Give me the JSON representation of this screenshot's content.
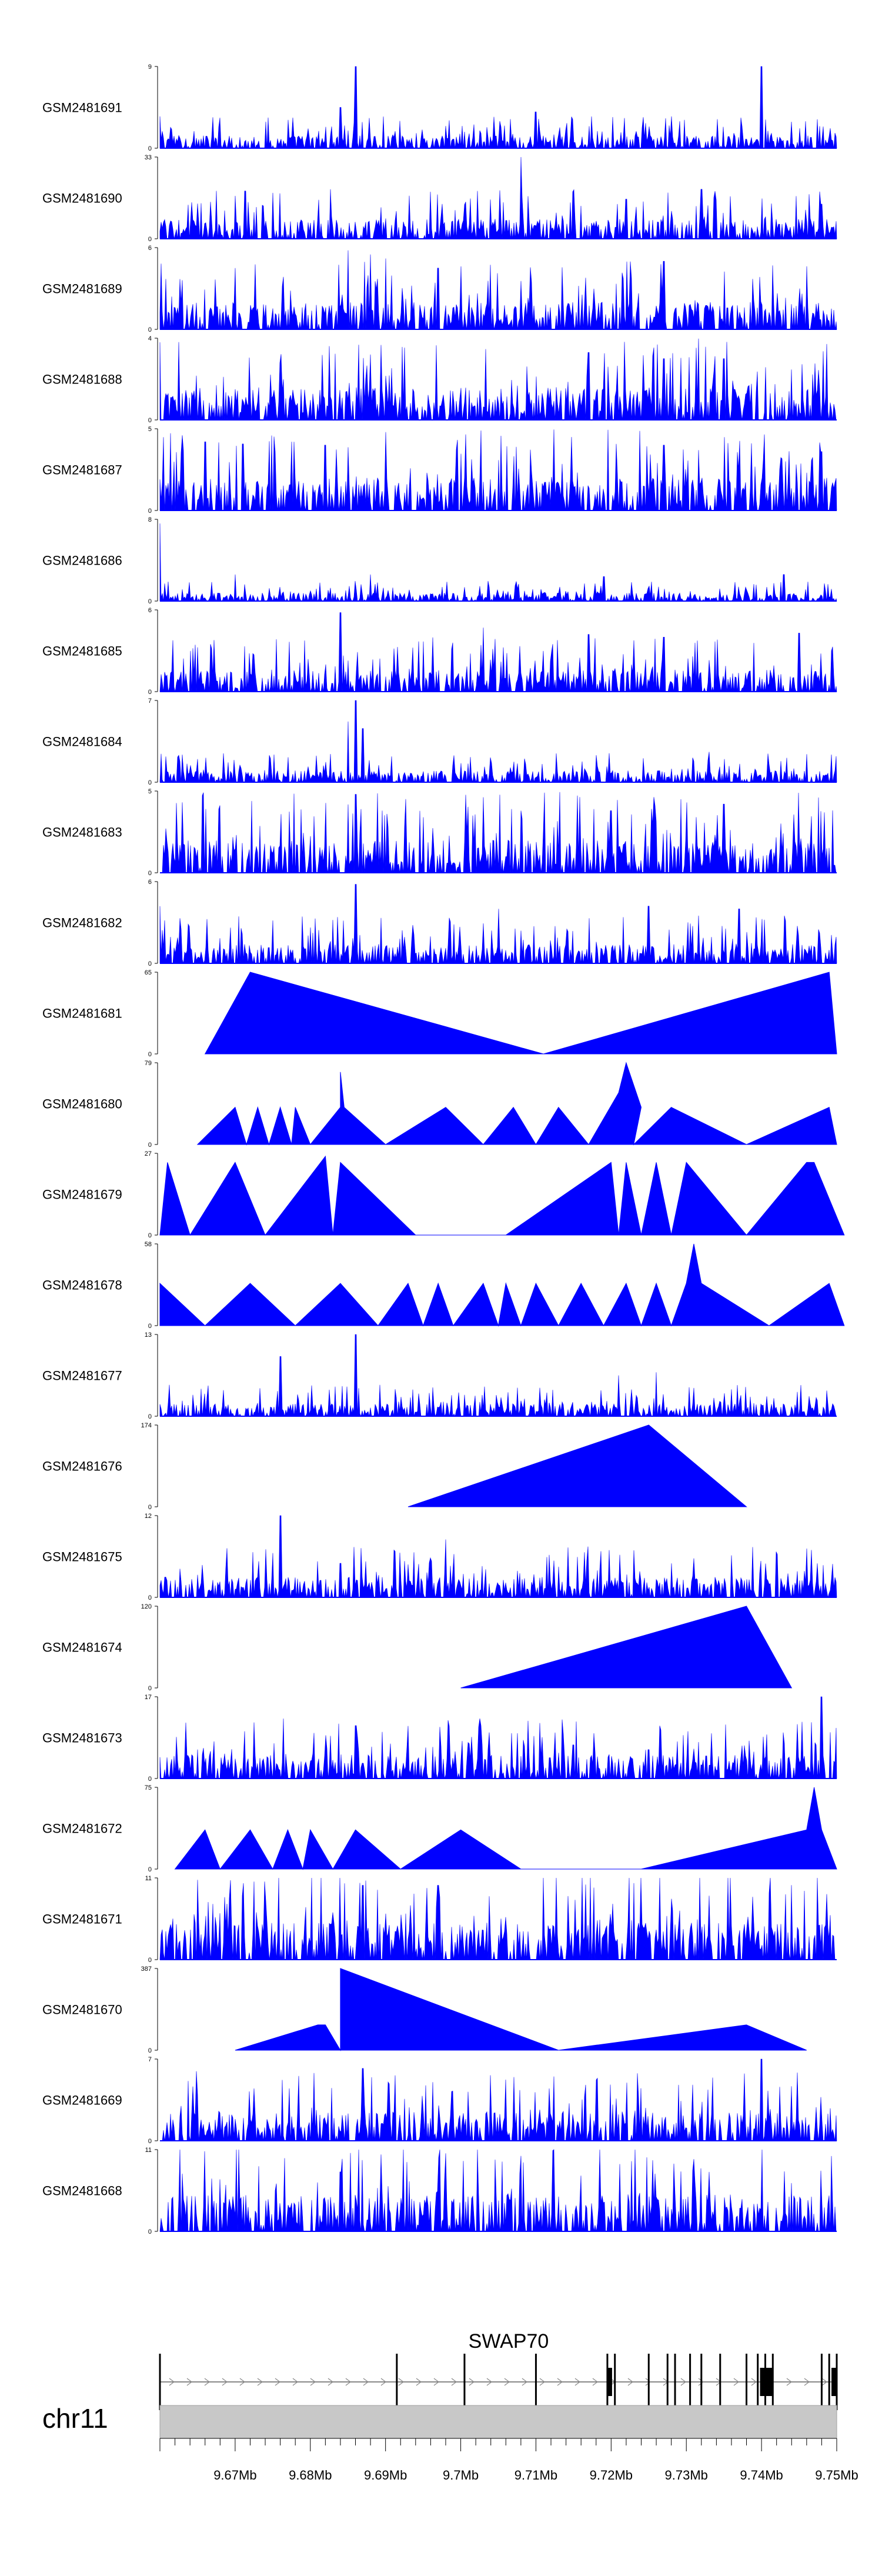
{
  "chart_data": {
    "type": "area",
    "genome": {
      "chromosome": "chr11",
      "x_range_mb": [
        9.66,
        9.75
      ],
      "x_ticks_mb": [
        9.67,
        9.68,
        9.69,
        9.7,
        9.71,
        9.72,
        9.73,
        9.74,
        9.75
      ],
      "x_tick_labels": [
        "9.67Mb",
        "9.68Mb",
        "9.69Mb",
        "9.7Mb",
        "9.71Mb",
        "9.72Mb",
        "9.73Mb",
        "9.74Mb",
        "9.75Mb"
      ]
    },
    "colors": {
      "signal": "#0000ff",
      "axis": "#000000",
      "ideogram": "#c8c8c8",
      "gene": "#000000"
    },
    "tracks": [
      {
        "label": "GSM2481691",
        "ymax": 9,
        "ymax_label": "9",
        "ymin_label": "0",
        "style": "dense",
        "baseline": 0.7,
        "peaks": [
          [
            9.686,
            9.0
          ],
          [
            9.74,
            9.0
          ],
          [
            9.684,
            4.5
          ],
          [
            9.71,
            4.0
          ],
          [
            9.66,
            3.5
          ],
          [
            9.728,
            3.5
          ]
        ]
      },
      {
        "label": "GSM2481690",
        "ymax": 33,
        "ymax_label": "33",
        "ymin_label": "0",
        "style": "dense",
        "baseline": 4.0,
        "peaks": [
          [
            9.708,
            33.0
          ],
          [
            9.696,
            19.0
          ],
          [
            9.715,
            19.0
          ],
          [
            9.732,
            20.0
          ],
          [
            9.722,
            16.0
          ],
          [
            9.748,
            14.0
          ]
        ]
      },
      {
        "label": "GSM2481689",
        "ymax": 6,
        "ymax_label": "6",
        "ymin_label": "0",
        "style": "dense",
        "baseline": 1.0,
        "peaks": [
          [
            9.685,
            5.8
          ],
          [
            9.688,
            5.5
          ],
          [
            9.69,
            5.2
          ],
          [
            9.697,
            4.5
          ],
          [
            9.727,
            5.0
          ],
          [
            9.67,
            4.5
          ]
        ]
      },
      {
        "label": "GSM2481688",
        "ymax": 4,
        "ymax_label": "4",
        "ymin_label": "0",
        "style": "dense",
        "baseline": 0.8,
        "peaks": [
          [
            9.66,
            3.8
          ],
          [
            9.688,
            3.2
          ],
          [
            9.717,
            3.3
          ],
          [
            9.727,
            3.0
          ],
          [
            9.735,
            3.0
          ],
          [
            9.676,
            2.8
          ]
        ]
      },
      {
        "label": "GSM2481687",
        "ymax": 5,
        "ymax_label": "5",
        "ymin_label": "0",
        "style": "dense",
        "baseline": 1.0,
        "peaks": [
          [
            9.663,
            4.6
          ],
          [
            9.666,
            4.2
          ],
          [
            9.69,
            4.8
          ],
          [
            9.682,
            4.0
          ],
          [
            9.727,
            4.0
          ],
          [
            9.748,
            3.6
          ]
        ]
      },
      {
        "label": "GSM2481686",
        "ymax": 8,
        "ymax_label": "8",
        "ymin_label": "0",
        "style": "dense",
        "baseline": 0.4,
        "peaks": [
          [
            9.66,
            7.6
          ],
          [
            9.67,
            2.6
          ],
          [
            9.688,
            2.6
          ],
          [
            9.719,
            2.4
          ],
          [
            9.743,
            2.6
          ]
        ]
      },
      {
        "label": "GSM2481685",
        "ymax": 6,
        "ymax_label": "6",
        "ymin_label": "0",
        "style": "dense",
        "baseline": 0.8,
        "peaks": [
          [
            9.684,
            5.8
          ],
          [
            9.703,
            4.7
          ],
          [
            9.717,
            4.2
          ],
          [
            9.727,
            4.0
          ],
          [
            9.745,
            4.3
          ]
        ]
      },
      {
        "label": "GSM2481684",
        "ymax": 7,
        "ymax_label": "7",
        "ymin_label": "0",
        "style": "dense",
        "baseline": 0.5,
        "peaks": [
          [
            9.686,
            7.0
          ],
          [
            9.685,
            5.2
          ],
          [
            9.687,
            4.6
          ],
          [
            9.733,
            2.6
          ],
          [
            9.746,
            2.4
          ]
        ]
      },
      {
        "label": "GSM2481683",
        "ymax": 5,
        "ymax_label": "5",
        "ymin_label": "0",
        "style": "dense",
        "baseline": 1.0,
        "peaks": [
          [
            9.686,
            4.8
          ],
          [
            9.708,
            3.8
          ],
          [
            9.72,
            3.8
          ],
          [
            9.735,
            4.2
          ],
          [
            9.695,
            3.4
          ]
        ]
      },
      {
        "label": "GSM2481682",
        "ymax": 6,
        "ymax_label": "6",
        "ymin_label": "0",
        "style": "dense",
        "baseline": 0.7,
        "peaks": [
          [
            9.686,
            5.8
          ],
          [
            9.66,
            4.2
          ],
          [
            9.705,
            4.0
          ],
          [
            9.725,
            4.2
          ],
          [
            9.737,
            4.0
          ]
        ]
      },
      {
        "label": "GSM2481681",
        "ymax": 65,
        "ymax_label": "65",
        "ymin_label": "0",
        "style": "sparse",
        "points": [
          [
            9.666,
            0
          ],
          [
            9.672,
            65
          ],
          [
            9.711,
            0
          ],
          [
            9.749,
            65
          ],
          [
            9.75,
            0
          ]
        ]
      },
      {
        "label": "GSM2481680",
        "ymax": 79,
        "ymax_label": "79",
        "ymin_label": "0",
        "style": "sparse",
        "points": [
          [
            9.665,
            0
          ],
          [
            9.67,
            36
          ],
          [
            9.6715,
            0
          ],
          [
            9.673,
            36
          ],
          [
            9.6745,
            0
          ],
          [
            9.676,
            36
          ],
          [
            9.6775,
            0
          ],
          [
            9.678,
            36
          ],
          [
            9.68,
            0
          ],
          [
            9.684,
            36
          ],
          [
            9.684,
            70
          ],
          [
            9.6845,
            36
          ],
          [
            9.69,
            0
          ],
          [
            9.698,
            36
          ],
          [
            9.703,
            0
          ],
          [
            9.707,
            36
          ],
          [
            9.71,
            0
          ],
          [
            9.713,
            36
          ],
          [
            9.717,
            0
          ],
          [
            9.721,
            50
          ],
          [
            9.722,
            79
          ],
          [
            9.724,
            36
          ],
          [
            9.723,
            0
          ],
          [
            9.728,
            36
          ],
          [
            9.738,
            0
          ],
          [
            9.749,
            36
          ],
          [
            9.75,
            0
          ]
        ]
      },
      {
        "label": "GSM2481679",
        "ymax": 27,
        "ymax_label": "27",
        "ymin_label": "0",
        "style": "sparse",
        "points": [
          [
            9.66,
            0
          ],
          [
            9.661,
            24
          ],
          [
            9.664,
            0
          ],
          [
            9.67,
            24
          ],
          [
            9.674,
            0
          ],
          [
            9.682,
            26
          ],
          [
            9.683,
            0
          ],
          [
            9.684,
            24
          ],
          [
            9.694,
            0
          ],
          [
            9.706,
            0
          ],
          [
            9.72,
            24
          ],
          [
            9.721,
            0
          ],
          [
            9.722,
            24
          ],
          [
            9.724,
            0
          ],
          [
            9.726,
            24
          ],
          [
            9.728,
            0
          ],
          [
            9.73,
            24
          ],
          [
            9.738,
            0
          ],
          [
            9.746,
            24
          ],
          [
            9.747,
            24
          ],
          [
            9.751,
            0
          ]
        ]
      },
      {
        "label": "GSM2481678",
        "ymax": 58,
        "ymax_label": "58",
        "ymin_label": "0",
        "style": "sparse",
        "points": [
          [
            9.66,
            0
          ],
          [
            9.66,
            30
          ],
          [
            9.666,
            0
          ],
          [
            9.672,
            30
          ],
          [
            9.678,
            0
          ],
          [
            9.684,
            30
          ],
          [
            9.689,
            0
          ],
          [
            9.693,
            30
          ],
          [
            9.695,
            0
          ],
          [
            9.697,
            30
          ],
          [
            9.699,
            0
          ],
          [
            9.703,
            30
          ],
          [
            9.705,
            0
          ],
          [
            9.706,
            30
          ],
          [
            9.708,
            0
          ],
          [
            9.71,
            30
          ],
          [
            9.713,
            0
          ],
          [
            9.716,
            30
          ],
          [
            9.719,
            0
          ],
          [
            9.722,
            30
          ],
          [
            9.724,
            0
          ],
          [
            9.726,
            30
          ],
          [
            9.728,
            0
          ],
          [
            9.73,
            30
          ],
          [
            9.731,
            58
          ],
          [
            9.732,
            30
          ],
          [
            9.741,
            0
          ],
          [
            9.749,
            30
          ],
          [
            9.751,
            0
          ]
        ]
      },
      {
        "label": "GSM2481677",
        "ymax": 13,
        "ymax_label": "13",
        "ymin_label": "0",
        "style": "dense",
        "baseline": 1.0,
        "peaks": [
          [
            9.686,
            13.0
          ],
          [
            9.676,
            9.5
          ],
          [
            9.721,
            6.5
          ],
          [
            9.726,
            7.0
          ],
          [
            9.731,
            4.5
          ]
        ]
      },
      {
        "label": "GSM2481676",
        "ymax": 174,
        "ymax_label": "174",
        "ymin_label": "0",
        "style": "sparse",
        "points": [
          [
            9.693,
            0
          ],
          [
            9.725,
            174
          ],
          [
            9.738,
            0
          ]
        ]
      },
      {
        "label": "GSM2481675",
        "ymax": 12,
        "ymax_label": "12",
        "ymin_label": "0",
        "style": "dense",
        "baseline": 1.5,
        "peaks": [
          [
            9.676,
            12.0
          ],
          [
            9.698,
            8.5
          ],
          [
            9.684,
            5.0
          ],
          [
            9.728,
            5.0
          ],
          [
            9.713,
            4.5
          ]
        ]
      },
      {
        "label": "GSM2481674",
        "ymax": 120,
        "ymax_label": "120",
        "ymin_label": "0",
        "style": "sparse",
        "points": [
          [
            9.7,
            0
          ],
          [
            9.738,
            120
          ],
          [
            9.744,
            0
          ]
        ]
      },
      {
        "label": "GSM2481673",
        "ymax": 17,
        "ymax_label": "17",
        "ymin_label": "0",
        "style": "dense",
        "baseline": 2.5,
        "peaks": [
          [
            9.748,
            17.0
          ],
          [
            9.686,
            11.0
          ],
          [
            9.715,
            7.0
          ],
          [
            9.701,
            7.5
          ],
          [
            9.725,
            6.0
          ]
        ]
      },
      {
        "label": "GSM2481672",
        "ymax": 75,
        "ymax_label": "75",
        "ymin_label": "0",
        "style": "sparse",
        "points": [
          [
            9.662,
            0
          ],
          [
            9.666,
            36
          ],
          [
            9.668,
            0
          ],
          [
            9.672,
            36
          ],
          [
            9.675,
            0
          ],
          [
            9.677,
            36
          ],
          [
            9.679,
            0
          ],
          [
            9.68,
            36
          ],
          [
            9.683,
            0
          ],
          [
            9.686,
            36
          ],
          [
            9.692,
            0
          ],
          [
            9.7,
            36
          ],
          [
            9.708,
            0
          ],
          [
            9.715,
            0
          ],
          [
            9.724,
            0
          ],
          [
            9.746,
            36
          ],
          [
            9.747,
            75
          ],
          [
            9.748,
            36
          ],
          [
            9.75,
            0
          ]
        ]
      },
      {
        "label": "GSM2481671",
        "ymax": 11,
        "ymax_label": "11",
        "ymin_label": "0",
        "style": "dense",
        "baseline": 2.5,
        "peaks": [
          [
            9.724,
            11.0
          ],
          [
            9.697,
            10.0
          ],
          [
            9.687,
            10.0
          ],
          [
            9.741,
            9.0
          ],
          [
            9.674,
            8.0
          ],
          [
            9.667,
            7.5
          ]
        ]
      },
      {
        "label": "GSM2481670",
        "ymax": 387,
        "ymax_label": "387",
        "ymin_label": "0",
        "style": "sparse",
        "points": [
          [
            9.67,
            0
          ],
          [
            9.681,
            120
          ],
          [
            9.682,
            120
          ],
          [
            9.684,
            0
          ],
          [
            9.684,
            387
          ],
          [
            9.713,
            0
          ],
          [
            9.738,
            120
          ],
          [
            9.746,
            0
          ]
        ]
      },
      {
        "label": "GSM2481669",
        "ymax": 7,
        "ymax_label": "7",
        "ymin_label": "0",
        "style": "dense",
        "baseline": 1.2,
        "peaks": [
          [
            9.74,
            7.0
          ],
          [
            9.687,
            6.2
          ],
          [
            9.665,
            4.0
          ],
          [
            9.724,
            4.5
          ],
          [
            9.701,
            4.2
          ]
        ]
      },
      {
        "label": "GSM2481668",
        "ymax": 11,
        "ymax_label": "11",
        "ymin_label": "0",
        "style": "dense",
        "baseline": 2.5,
        "peaks": [
          [
            9.698,
            10.5
          ],
          [
            9.684,
            8.0
          ],
          [
            9.733,
            8.0
          ],
          [
            9.716,
            7.5
          ],
          [
            9.668,
            7.0
          ],
          [
            9.744,
            6.5
          ]
        ]
      }
    ],
    "gene": {
      "name": "SWAP70",
      "start_mb": 9.66,
      "end_mb": 9.75,
      "exons_mb": [
        9.66,
        9.6915,
        9.7005,
        9.71,
        9.7195,
        9.7205,
        9.725,
        9.7275,
        9.7285,
        9.7305,
        9.732,
        9.7345,
        9.738,
        9.7395,
        9.7405,
        9.7415,
        9.748,
        9.749,
        9.75
      ],
      "thick_exons_mb": [
        [
          9.7195,
          9.72
        ],
        [
          9.7398,
          9.7415
        ],
        [
          9.7493,
          9.75
        ]
      ]
    }
  }
}
